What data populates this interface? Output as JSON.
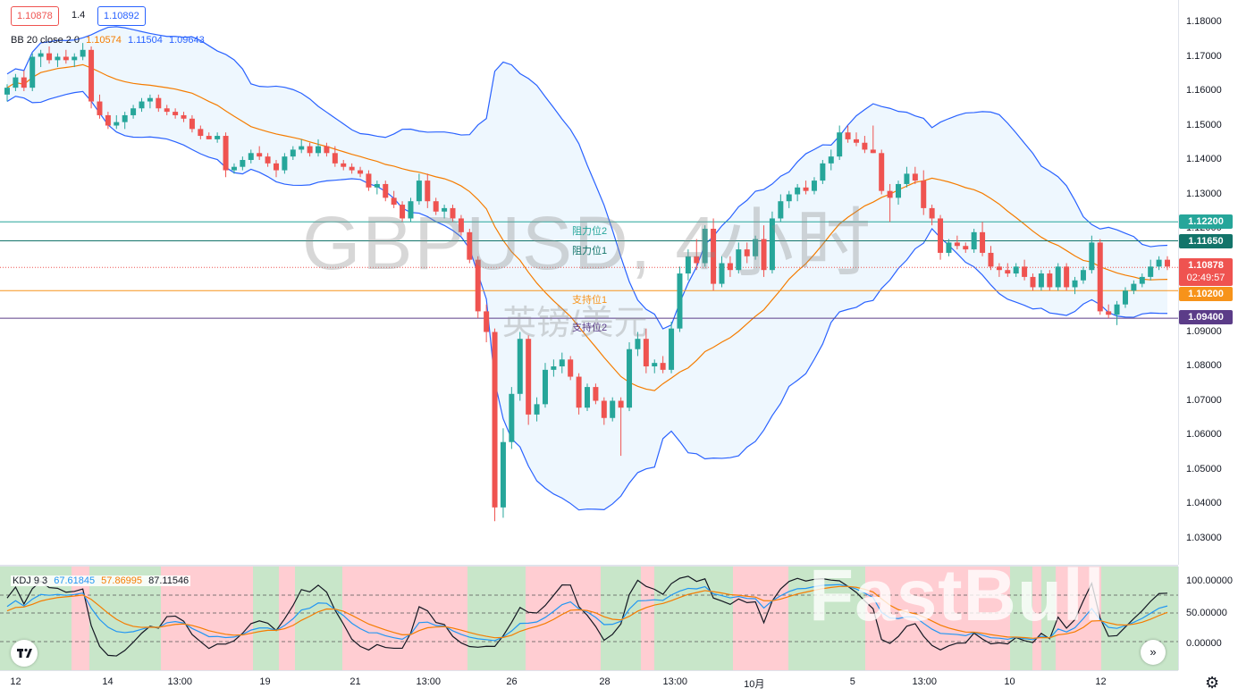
{
  "header": {
    "bid": "1.10878",
    "spread": "1.4",
    "ask": "1.10892"
  },
  "bb": {
    "label": "BB 20 close 2 0",
    "basis": "1.10574",
    "upper": "1.11504",
    "lower": "1.09643"
  },
  "watermark": {
    "title": "GBPUSD, 4小时",
    "subtitle": "英镑/美元"
  },
  "levels": [
    {
      "name": "阻力位2",
      "value": "1.12200",
      "color": "#26a69a",
      "price": 1.122
    },
    {
      "name": "阻力位1",
      "value": "1.11650",
      "color": "#13746a",
      "price": 1.1165
    },
    {
      "name": "支持位1",
      "value": "1.10200",
      "color": "#f7931a",
      "price": 1.102
    },
    {
      "name": "支持位2",
      "value": "1.09400",
      "color": "#5b3c88",
      "price": 1.094
    }
  ],
  "last_price": {
    "value": "1.10878",
    "countdown": "02:49:57",
    "color": "#ef5350"
  },
  "price_axis": [
    "1.18000",
    "1.17000",
    "1.16000",
    "1.15000",
    "1.14000",
    "1.13000",
    "1.12000",
    "1.11000",
    "1.10000",
    "1.09000",
    "1.08000",
    "1.07000",
    "1.06000",
    "1.05000",
    "1.04000",
    "1.03000"
  ],
  "kdj": {
    "label": "KDJ 9 3",
    "k": "67.61845",
    "d": "57.86995",
    "j": "87.11546",
    "axis": [
      "100.00000",
      "50.00000",
      "0.00000"
    ]
  },
  "time_axis": [
    "12",
    "14",
    "13:00",
    "19",
    "21",
    "13:00",
    "26",
    "28",
    "13:00",
    "10月",
    "5",
    "13:00",
    "10",
    "12"
  ],
  "brand": {
    "watermark": "FastBull"
  },
  "colors": {
    "up": "#26a69a",
    "down": "#ef5350",
    "bb": "#2962ff",
    "basis": "#f57c00"
  },
  "chart_data": {
    "type": "candlestick",
    "title": "GBPUSD, 4小时",
    "ylim": [
      1.025,
      1.185
    ],
    "ohlc": [
      [
        1.159,
        1.162,
        1.157,
        1.161
      ],
      [
        1.161,
        1.165,
        1.16,
        1.164
      ],
      [
        1.164,
        1.166,
        1.16,
        1.161
      ],
      [
        1.161,
        1.171,
        1.16,
        1.17
      ],
      [
        1.17,
        1.172,
        1.167,
        1.171
      ],
      [
        1.171,
        1.173,
        1.168,
        1.169
      ],
      [
        1.169,
        1.171,
        1.167,
        1.17
      ],
      [
        1.17,
        1.172,
        1.168,
        1.169
      ],
      [
        1.169,
        1.171,
        1.167,
        1.17
      ],
      [
        1.17,
        1.174,
        1.169,
        1.172
      ],
      [
        1.172,
        1.173,
        1.155,
        1.157
      ],
      [
        1.157,
        1.159,
        1.152,
        1.153
      ],
      [
        1.153,
        1.154,
        1.149,
        1.15
      ],
      [
        1.15,
        1.153,
        1.149,
        1.151
      ],
      [
        1.151,
        1.154,
        1.149,
        1.153
      ],
      [
        1.153,
        1.156,
        1.152,
        1.155
      ],
      [
        1.155,
        1.158,
        1.154,
        1.157
      ],
      [
        1.157,
        1.159,
        1.155,
        1.158
      ],
      [
        1.158,
        1.159,
        1.154,
        1.155
      ],
      [
        1.155,
        1.156,
        1.153,
        1.154
      ],
      [
        1.154,
        1.155,
        1.152,
        1.153
      ],
      [
        1.153,
        1.154,
        1.151,
        1.152
      ],
      [
        1.152,
        1.153,
        1.148,
        1.149
      ],
      [
        1.149,
        1.15,
        1.146,
        1.147
      ],
      [
        1.147,
        1.148,
        1.146,
        1.146
      ],
      [
        1.146,
        1.148,
        1.145,
        1.147
      ],
      [
        1.147,
        1.148,
        1.135,
        1.137
      ],
      [
        1.137,
        1.139,
        1.136,
        1.138
      ],
      [
        1.138,
        1.141,
        1.137,
        1.14
      ],
      [
        1.14,
        1.143,
        1.139,
        1.142
      ],
      [
        1.142,
        1.144,
        1.14,
        1.141
      ],
      [
        1.141,
        1.142,
        1.138,
        1.139
      ],
      [
        1.139,
        1.14,
        1.135,
        1.137
      ],
      [
        1.137,
        1.142,
        1.136,
        1.141
      ],
      [
        1.141,
        1.144,
        1.14,
        1.143
      ],
      [
        1.143,
        1.146,
        1.142,
        1.144
      ],
      [
        1.144,
        1.145,
        1.141,
        1.142
      ],
      [
        1.142,
        1.146,
        1.141,
        1.144
      ],
      [
        1.144,
        1.145,
        1.141,
        1.142
      ],
      [
        1.142,
        1.144,
        1.138,
        1.139
      ],
      [
        1.139,
        1.14,
        1.137,
        1.138
      ],
      [
        1.138,
        1.139,
        1.136,
        1.137
      ],
      [
        1.137,
        1.138,
        1.135,
        1.136
      ],
      [
        1.136,
        1.137,
        1.131,
        1.132
      ],
      [
        1.132,
        1.134,
        1.13,
        1.133
      ],
      [
        1.133,
        1.134,
        1.128,
        1.129
      ],
      [
        1.129,
        1.131,
        1.126,
        1.127
      ],
      [
        1.127,
        1.128,
        1.122,
        1.123
      ],
      [
        1.123,
        1.129,
        1.122,
        1.128
      ],
      [
        1.128,
        1.136,
        1.127,
        1.134
      ],
      [
        1.134,
        1.136,
        1.126,
        1.128
      ],
      [
        1.128,
        1.129,
        1.124,
        1.125
      ],
      [
        1.125,
        1.127,
        1.123,
        1.126
      ],
      [
        1.126,
        1.127,
        1.122,
        1.123
      ],
      [
        1.123,
        1.124,
        1.118,
        1.119
      ],
      [
        1.119,
        1.12,
        1.11,
        1.111
      ],
      [
        1.111,
        1.112,
        1.094,
        1.096
      ],
      [
        1.096,
        1.098,
        1.087,
        1.09
      ],
      [
        1.09,
        1.091,
        1.035,
        1.039
      ],
      [
        1.039,
        1.062,
        1.036,
        1.058
      ],
      [
        1.058,
        1.074,
        1.056,
        1.072
      ],
      [
        1.072,
        1.09,
        1.07,
        1.088
      ],
      [
        1.088,
        1.089,
        1.063,
        1.066
      ],
      [
        1.066,
        1.071,
        1.064,
        1.069
      ],
      [
        1.069,
        1.081,
        1.068,
        1.079
      ],
      [
        1.079,
        1.082,
        1.077,
        1.08
      ],
      [
        1.08,
        1.084,
        1.078,
        1.082
      ],
      [
        1.082,
        1.083,
        1.076,
        1.077
      ],
      [
        1.077,
        1.078,
        1.066,
        1.068
      ],
      [
        1.068,
        1.075,
        1.067,
        1.074
      ],
      [
        1.074,
        1.075,
        1.069,
        1.07
      ],
      [
        1.07,
        1.071,
        1.063,
        1.065
      ],
      [
        1.065,
        1.071,
        1.064,
        1.07
      ],
      [
        1.07,
        1.071,
        1.054,
        1.068
      ],
      [
        1.068,
        1.087,
        1.067,
        1.085
      ],
      [
        1.085,
        1.09,
        1.083,
        1.088
      ],
      [
        1.088,
        1.091,
        1.078,
        1.08
      ],
      [
        1.08,
        1.082,
        1.078,
        1.081
      ],
      [
        1.081,
        1.083,
        1.078,
        1.079
      ],
      [
        1.079,
        1.093,
        1.078,
        1.091
      ],
      [
        1.091,
        1.109,
        1.09,
        1.107
      ],
      [
        1.107,
        1.114,
        1.105,
        1.112
      ],
      [
        1.112,
        1.117,
        1.108,
        1.11
      ],
      [
        1.11,
        1.121,
        1.109,
        1.12
      ],
      [
        1.12,
        1.123,
        1.102,
        1.104
      ],
      [
        1.104,
        1.112,
        1.103,
        1.11
      ],
      [
        1.11,
        1.112,
        1.106,
        1.108
      ],
      [
        1.108,
        1.116,
        1.107,
        1.114
      ],
      [
        1.114,
        1.116,
        1.11,
        1.112
      ],
      [
        1.112,
        1.118,
        1.111,
        1.117
      ],
      [
        1.117,
        1.121,
        1.106,
        1.108
      ],
      [
        1.108,
        1.125,
        1.107,
        1.123
      ],
      [
        1.123,
        1.13,
        1.122,
        1.128
      ],
      [
        1.128,
        1.131,
        1.126,
        1.13
      ],
      [
        1.13,
        1.133,
        1.128,
        1.132
      ],
      [
        1.132,
        1.134,
        1.13,
        1.131
      ],
      [
        1.131,
        1.135,
        1.13,
        1.134
      ],
      [
        1.134,
        1.14,
        1.133,
        1.139
      ],
      [
        1.139,
        1.143,
        1.137,
        1.141
      ],
      [
        1.141,
        1.15,
        1.14,
        1.148
      ],
      [
        1.148,
        1.15,
        1.145,
        1.146
      ],
      [
        1.146,
        1.148,
        1.144,
        1.145
      ],
      [
        1.145,
        1.147,
        1.142,
        1.143
      ],
      [
        1.143,
        1.15,
        1.142,
        1.142
      ],
      [
        1.142,
        1.143,
        1.13,
        1.131
      ],
      [
        1.131,
        1.133,
        1.122,
        1.129
      ],
      [
        1.129,
        1.134,
        1.127,
        1.133
      ],
      [
        1.133,
        1.138,
        1.132,
        1.136
      ],
      [
        1.136,
        1.138,
        1.133,
        1.134
      ],
      [
        1.134,
        1.137,
        1.124,
        1.126
      ],
      [
        1.126,
        1.127,
        1.121,
        1.123
      ],
      [
        1.123,
        1.124,
        1.111,
        1.113
      ],
      [
        1.113,
        1.117,
        1.112,
        1.116
      ],
      [
        1.116,
        1.118,
        1.114,
        1.115
      ],
      [
        1.115,
        1.116,
        1.113,
        1.114
      ],
      [
        1.114,
        1.12,
        1.113,
        1.119
      ],
      [
        1.119,
        1.122,
        1.112,
        1.113
      ],
      [
        1.113,
        1.115,
        1.108,
        1.109
      ],
      [
        1.109,
        1.11,
        1.106,
        1.108
      ],
      [
        1.108,
        1.11,
        1.106,
        1.107
      ],
      [
        1.107,
        1.11,
        1.106,
        1.109
      ],
      [
        1.109,
        1.111,
        1.105,
        1.106
      ],
      [
        1.106,
        1.107,
        1.102,
        1.103
      ],
      [
        1.103,
        1.108,
        1.102,
        1.107
      ],
      [
        1.107,
        1.108,
        1.102,
        1.103
      ],
      [
        1.103,
        1.11,
        1.102,
        1.109
      ],
      [
        1.109,
        1.11,
        1.102,
        1.103
      ],
      [
        1.103,
        1.106,
        1.101,
        1.105
      ],
      [
        1.105,
        1.109,
        1.104,
        1.108
      ],
      [
        1.108,
        1.118,
        1.107,
        1.116
      ],
      [
        1.116,
        1.117,
        1.095,
        1.096
      ],
      [
        1.096,
        1.098,
        1.094,
        1.095
      ],
      [
        1.095,
        1.099,
        1.092,
        1.098
      ],
      [
        1.098,
        1.103,
        1.097,
        1.102
      ],
      [
        1.102,
        1.105,
        1.101,
        1.104
      ],
      [
        1.104,
        1.107,
        1.103,
        1.106
      ],
      [
        1.106,
        1.111,
        1.105,
        1.109
      ],
      [
        1.109,
        1.112,
        1.108,
        1.111
      ],
      [
        1.111,
        1.112,
        1.108,
        1.109
      ]
    ]
  }
}
